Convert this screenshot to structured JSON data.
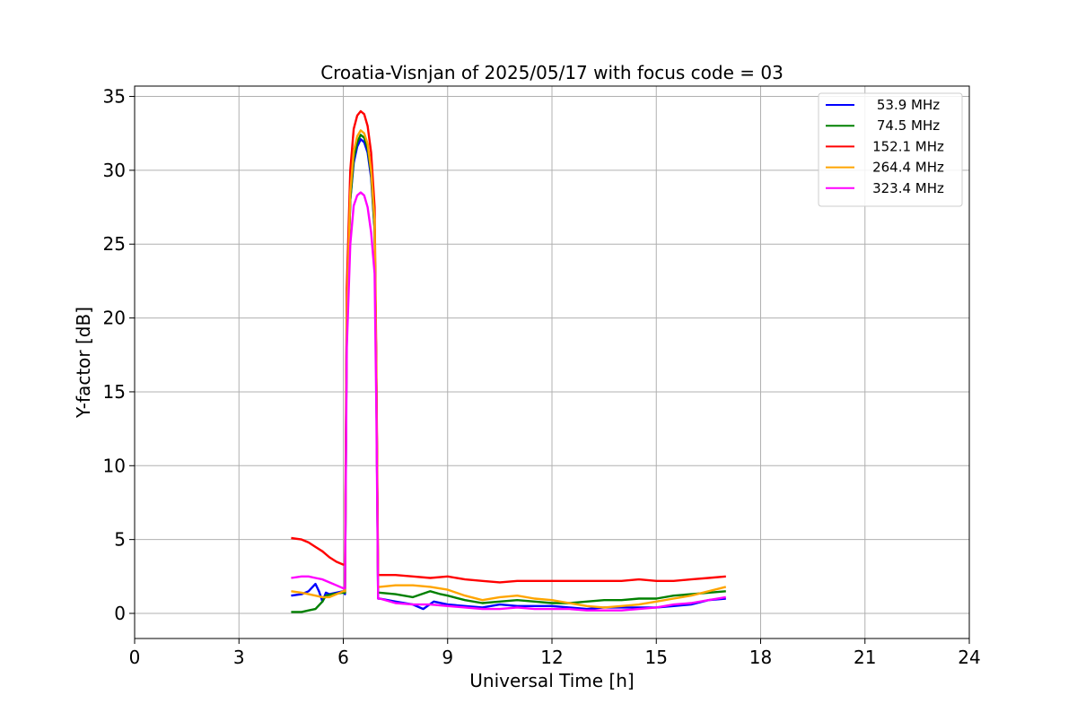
{
  "chart_data": {
    "type": "line",
    "title": "Croatia-Visnjan of 2025/05/17 with focus code = 03",
    "xlabel": "Universal Time [h]",
    "ylabel": "Y-factor [dB]",
    "xlim": [
      0,
      24
    ],
    "ylim": [
      -1.7,
      35.7
    ],
    "xticks": [
      0,
      3,
      6,
      9,
      12,
      15,
      18,
      21,
      24
    ],
    "yticks": [
      0,
      5,
      10,
      15,
      20,
      25,
      30,
      35
    ],
    "grid": true,
    "legend_position": "upper right",
    "series": [
      {
        "name": "53.9 MHz",
        "color": "#0000ff",
        "x": [
          4.5,
          4.8,
          5.0,
          5.2,
          5.3,
          5.4,
          5.5,
          5.6,
          5.8,
          6.0,
          6.05,
          6.1,
          6.2,
          6.3,
          6.4,
          6.5,
          6.6,
          6.7,
          6.8,
          6.9,
          6.95,
          7.0,
          7.05,
          7.5,
          8.0,
          8.3,
          8.6,
          9.0,
          9.5,
          10.0,
          10.5,
          11.0,
          11.5,
          12.0,
          12.5,
          13.0,
          13.5,
          14.0,
          14.5,
          15.0,
          15.5,
          16.0,
          16.5,
          17.0
        ],
        "y": [
          1.2,
          1.3,
          1.5,
          2.0,
          1.5,
          0.8,
          1.4,
          1.3,
          1.4,
          1.5,
          1.3,
          20,
          28,
          30.5,
          31.6,
          32.1,
          31.9,
          31.2,
          29.5,
          26,
          16,
          1.0,
          1.0,
          0.8,
          0.6,
          0.3,
          0.8,
          0.6,
          0.5,
          0.4,
          0.6,
          0.5,
          0.5,
          0.5,
          0.4,
          0.3,
          0.4,
          0.4,
          0.4,
          0.4,
          0.5,
          0.6,
          0.9,
          1.0
        ]
      },
      {
        "name": "74.5 MHz",
        "color": "#008000",
        "x": [
          4.5,
          4.8,
          5.0,
          5.2,
          5.4,
          5.5,
          5.7,
          6.0,
          6.05,
          6.1,
          6.2,
          6.3,
          6.4,
          6.5,
          6.6,
          6.7,
          6.8,
          6.9,
          6.95,
          7.0,
          7.05,
          7.5,
          8.0,
          8.5,
          8.8,
          9.0,
          9.5,
          10.0,
          10.5,
          11.0,
          11.5,
          12.0,
          12.5,
          13.0,
          13.5,
          14.0,
          14.5,
          15.0,
          15.5,
          16.0,
          16.5,
          17.0
        ],
        "y": [
          0.1,
          0.1,
          0.2,
          0.3,
          0.8,
          1.2,
          1.3,
          1.4,
          1.4,
          20,
          28,
          30.8,
          31.9,
          32.4,
          32.2,
          31.5,
          29.8,
          26,
          16,
          1.4,
          1.4,
          1.3,
          1.1,
          1.5,
          1.3,
          1.2,
          0.9,
          0.7,
          0.8,
          0.9,
          0.8,
          0.7,
          0.7,
          0.8,
          0.9,
          0.9,
          1.0,
          1.0,
          1.2,
          1.3,
          1.4,
          1.5
        ]
      },
      {
        "name": "152.1 MHz",
        "color": "#ff0000",
        "x": [
          4.5,
          4.8,
          5.0,
          5.2,
          5.4,
          5.6,
          5.8,
          6.0,
          6.05,
          6.1,
          6.2,
          6.3,
          6.4,
          6.5,
          6.6,
          6.7,
          6.8,
          6.9,
          6.95,
          7.0,
          7.05,
          7.5,
          8.0,
          8.5,
          9.0,
          9.5,
          10.0,
          10.5,
          11.0,
          11.5,
          12.0,
          12.5,
          13.0,
          13.5,
          14.0,
          14.5,
          15.0,
          15.5,
          16.0,
          16.5,
          17.0
        ],
        "y": [
          5.1,
          5.0,
          4.8,
          4.5,
          4.2,
          3.8,
          3.5,
          3.3,
          3.3,
          22,
          30,
          32.8,
          33.7,
          34.0,
          33.8,
          33.0,
          31.2,
          27.5,
          17,
          2.6,
          2.6,
          2.6,
          2.5,
          2.4,
          2.5,
          2.3,
          2.2,
          2.1,
          2.2,
          2.2,
          2.2,
          2.2,
          2.2,
          2.2,
          2.2,
          2.3,
          2.2,
          2.2,
          2.3,
          2.4,
          2.5
        ]
      },
      {
        "name": "264.4 MHz",
        "color": "#ffa500",
        "x": [
          4.5,
          4.8,
          5.0,
          5.2,
          5.4,
          5.6,
          5.8,
          6.0,
          6.05,
          6.1,
          6.2,
          6.3,
          6.4,
          6.5,
          6.6,
          6.7,
          6.8,
          6.9,
          6.95,
          7.0,
          7.05,
          7.5,
          8.0,
          8.5,
          9.0,
          9.5,
          10.0,
          10.5,
          11.0,
          11.5,
          12.0,
          12.5,
          13.0,
          13.5,
          14.0,
          14.5,
          15.0,
          15.5,
          16.0,
          16.5,
          17.0
        ],
        "y": [
          1.5,
          1.4,
          1.3,
          1.2,
          1.1,
          1.1,
          1.3,
          1.5,
          1.5,
          20,
          28.5,
          31.3,
          32.3,
          32.7,
          32.5,
          31.8,
          30,
          26.5,
          16,
          1.8,
          1.8,
          1.9,
          1.9,
          1.8,
          1.6,
          1.2,
          0.9,
          1.1,
          1.2,
          1.0,
          0.9,
          0.7,
          0.5,
          0.4,
          0.5,
          0.6,
          0.8,
          1.0,
          1.2,
          1.5,
          1.8
        ]
      },
      {
        "name": "323.4 MHz",
        "color": "#ff00ff",
        "x": [
          4.5,
          4.8,
          5.0,
          5.2,
          5.4,
          5.6,
          5.8,
          6.0,
          6.05,
          6.1,
          6.2,
          6.3,
          6.4,
          6.5,
          6.6,
          6.7,
          6.8,
          6.9,
          6.95,
          7.0,
          7.05,
          7.5,
          8.0,
          8.5,
          9.0,
          9.5,
          10.0,
          10.5,
          11.0,
          11.5,
          12.0,
          12.5,
          13.0,
          13.5,
          14.0,
          14.5,
          15.0,
          15.5,
          16.0,
          16.5,
          17.0
        ],
        "y": [
          2.4,
          2.5,
          2.5,
          2.4,
          2.3,
          2.1,
          1.9,
          1.7,
          1.7,
          18,
          25,
          27.6,
          28.3,
          28.5,
          28.3,
          27.5,
          25.8,
          23,
          14,
          1.0,
          1.0,
          0.7,
          0.6,
          0.6,
          0.5,
          0.4,
          0.3,
          0.3,
          0.4,
          0.3,
          0.3,
          0.3,
          0.2,
          0.2,
          0.2,
          0.3,
          0.4,
          0.6,
          0.7,
          0.9,
          1.1
        ]
      }
    ]
  }
}
